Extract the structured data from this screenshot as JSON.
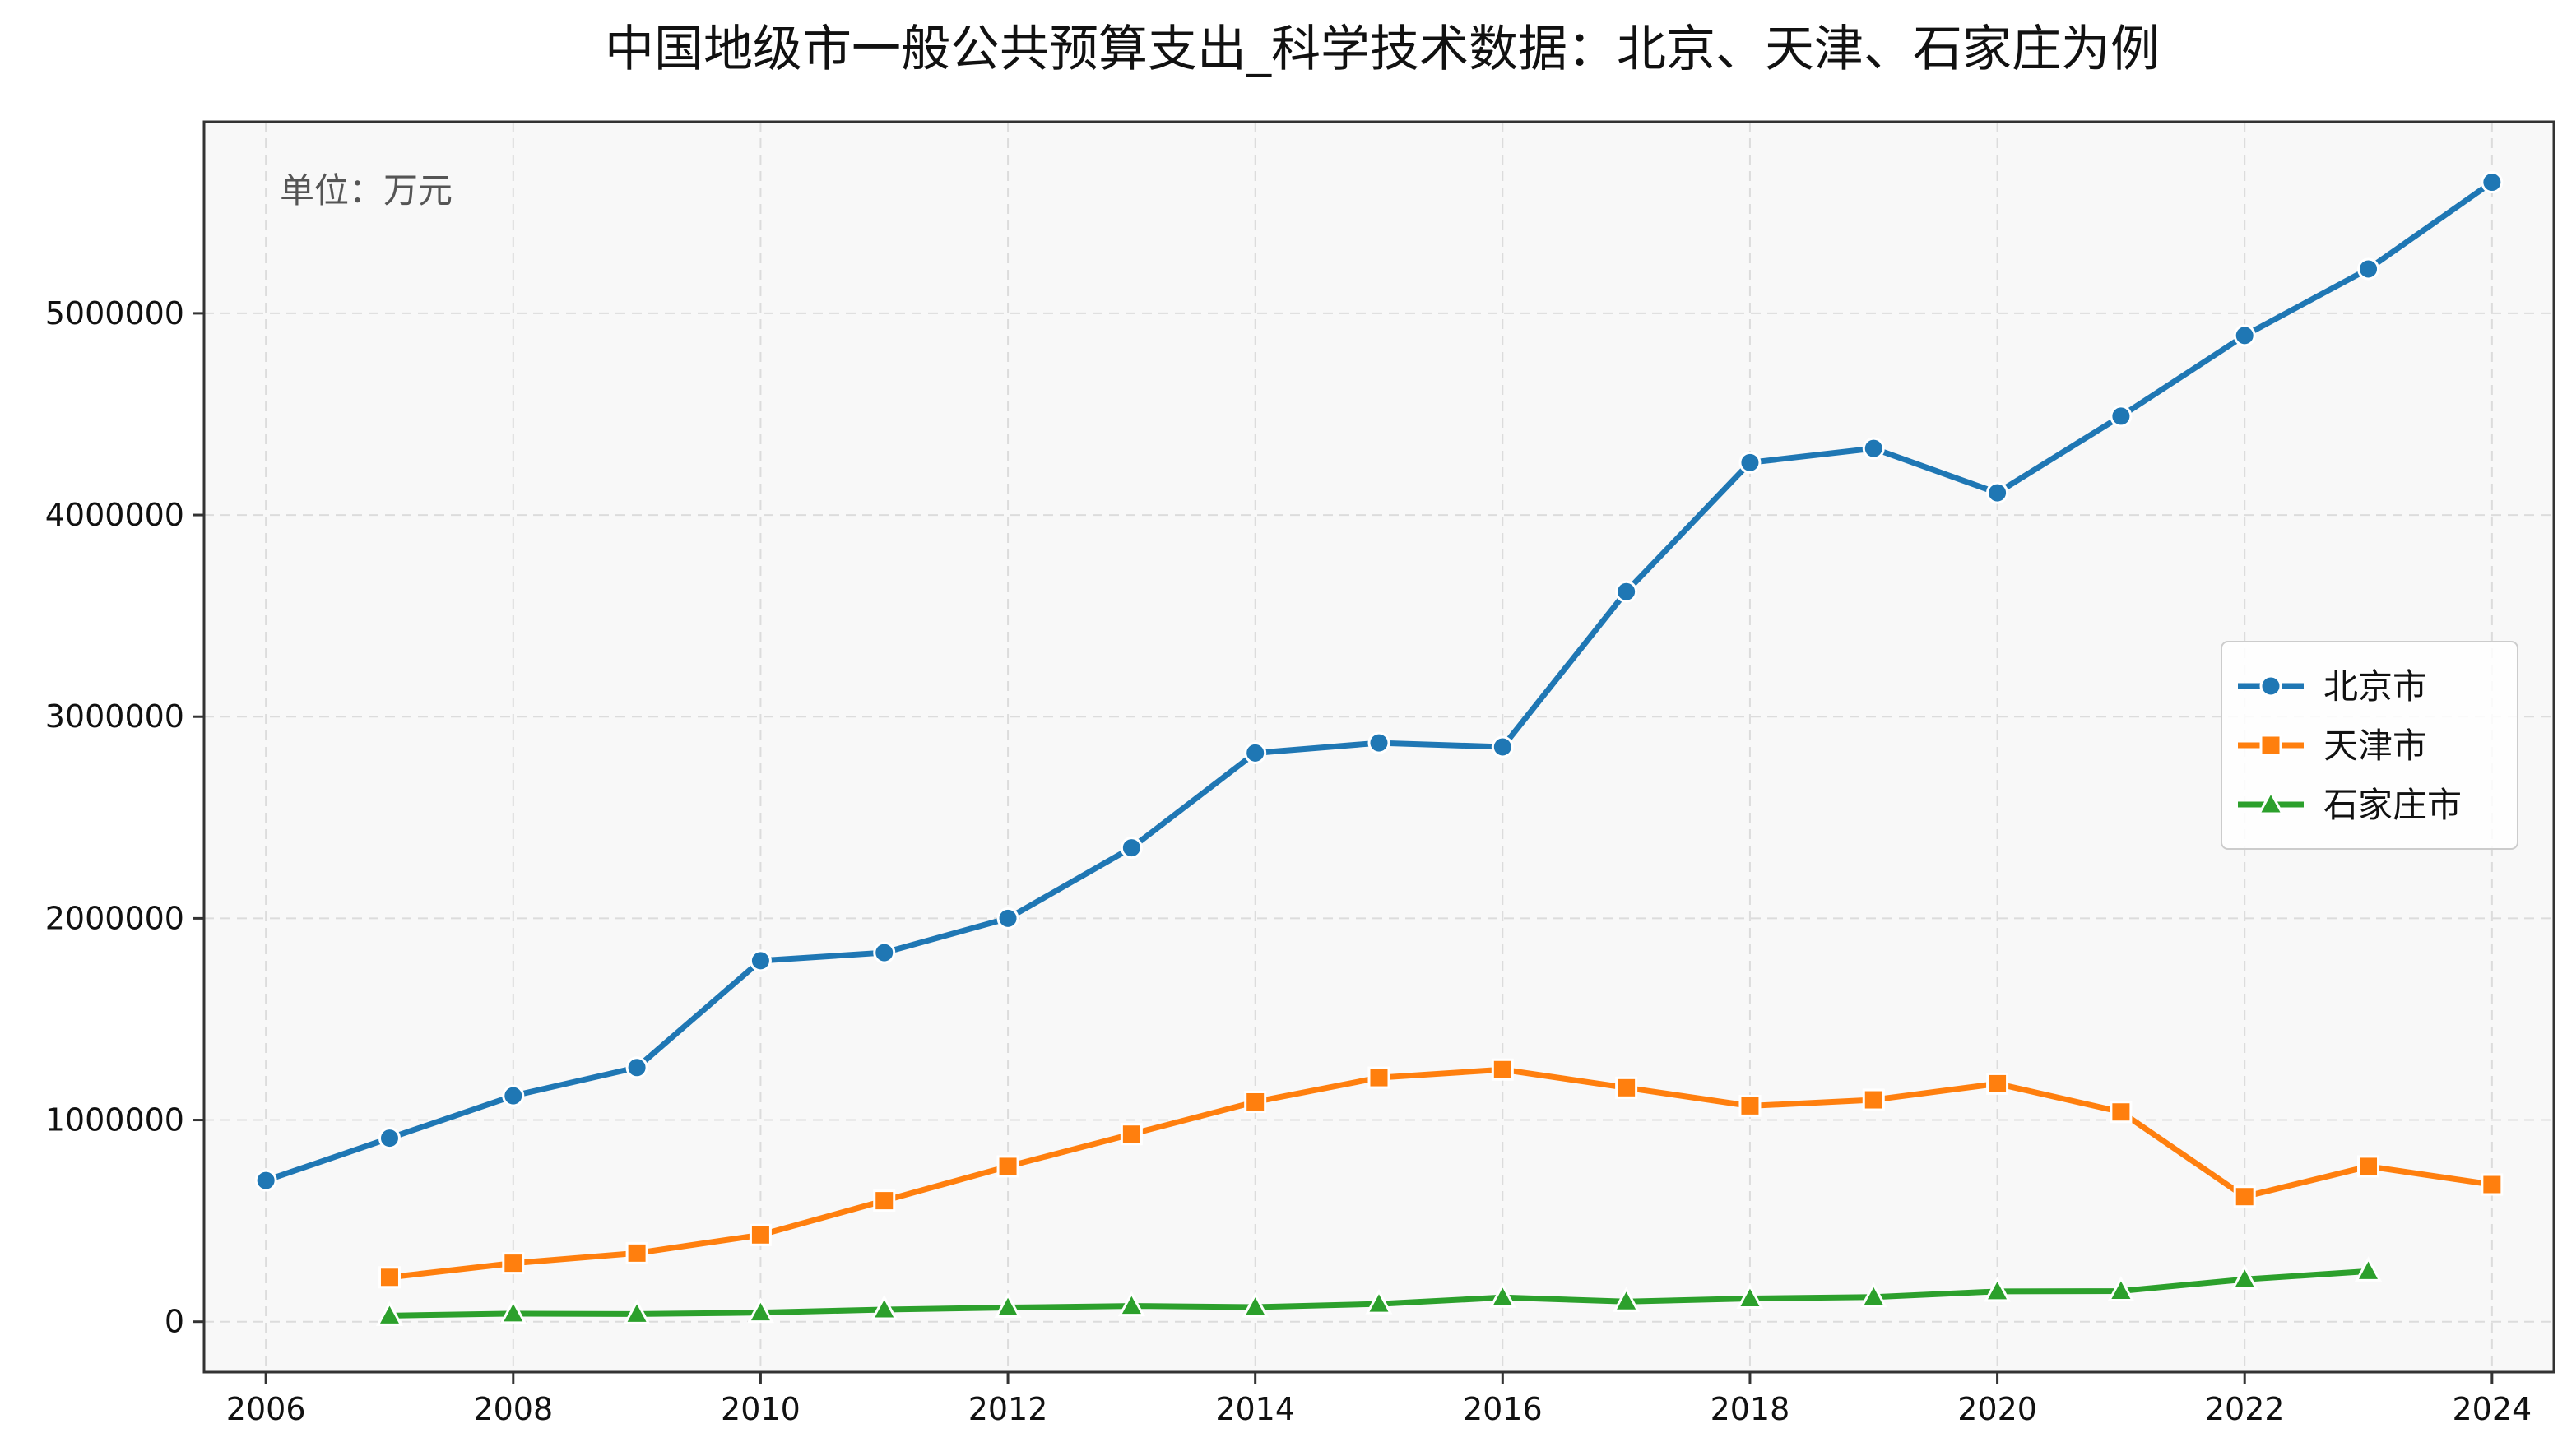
{
  "chart_data": {
    "type": "line",
    "title": "中国地级市一般公共预算支出_科学技术数据：北京、天津、石家庄为例",
    "unit_note": "单位：万元",
    "xlabel": "",
    "ylabel": "",
    "xlim": [
      2005.5,
      2024.5
    ],
    "ylim": [
      -250000,
      5950000
    ],
    "x_ticks": [
      2006,
      2008,
      2010,
      2012,
      2014,
      2016,
      2018,
      2020,
      2022,
      2024
    ],
    "y_ticks": [
      0,
      1000000,
      2000000,
      3000000,
      4000000,
      5000000
    ],
    "grid": true,
    "legend_position": "right",
    "series": [
      {
        "name": "北京市",
        "color": "#1f77b4",
        "marker": "circle",
        "x": [
          2006,
          2007,
          2008,
          2009,
          2010,
          2011,
          2012,
          2013,
          2014,
          2015,
          2016,
          2017,
          2018,
          2019,
          2020,
          2021,
          2022,
          2023,
          2024
        ],
        "values": [
          700000,
          910000,
          1120000,
          1260000,
          1790000,
          1830000,
          2000000,
          2350000,
          2820000,
          2870000,
          2850000,
          3620000,
          4260000,
          4330000,
          4110000,
          4490000,
          4890000,
          5220000,
          5650000
        ]
      },
      {
        "name": "天津市",
        "color": "#ff7f0e",
        "marker": "square",
        "x": [
          2007,
          2008,
          2009,
          2010,
          2011,
          2012,
          2013,
          2014,
          2015,
          2016,
          2017,
          2018,
          2019,
          2020,
          2021,
          2022,
          2023,
          2024
        ],
        "values": [
          220000,
          290000,
          340000,
          430000,
          600000,
          770000,
          930000,
          1090000,
          1210000,
          1250000,
          1160000,
          1070000,
          1100000,
          1180000,
          1040000,
          620000,
          770000,
          680000
        ]
      },
      {
        "name": "石家庄市",
        "color": "#2ca02c",
        "marker": "triangle",
        "x": [
          2007,
          2008,
          2009,
          2010,
          2011,
          2012,
          2013,
          2014,
          2015,
          2016,
          2017,
          2018,
          2019,
          2020,
          2021,
          2022,
          2023
        ],
        "values": [
          30000,
          40000,
          38000,
          45000,
          60000,
          70000,
          78000,
          72000,
          88000,
          120000,
          100000,
          115000,
          122000,
          150000,
          152000,
          210000,
          250000
        ]
      }
    ]
  }
}
